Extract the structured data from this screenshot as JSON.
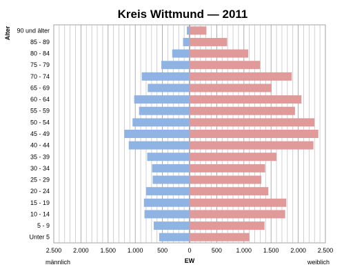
{
  "chart_data": {
    "type": "bar",
    "orientation": "horizontal",
    "title": "Kreis Wittmund — 2011",
    "ylabel": "Alter",
    "xlabel": "EW",
    "left_label": "männlich",
    "right_label": "weiblich",
    "categories": [
      "90 und älter",
      "85 - 89",
      "80 - 84",
      "75 - 79",
      "70 - 74",
      "65 - 69",
      "60 - 64",
      "55 - 59",
      "50 - 54",
      "45 - 49",
      "40 - 44",
      "35 - 39",
      "30 - 34",
      "25 - 29",
      "20 - 24",
      "15 - 19",
      "10 - 14",
      "5 - 9",
      "Unter 5"
    ],
    "series": [
      {
        "name": "männlich",
        "color": "#8fb4e3",
        "values": [
          50,
          120,
          320,
          520,
          880,
          770,
          1020,
          930,
          1050,
          1200,
          1120,
          780,
          690,
          680,
          800,
          840,
          830,
          660,
          560
        ]
      },
      {
        "name": "weiblich",
        "color": "#e09a9a",
        "values": [
          310,
          690,
          1080,
          1300,
          1880,
          1510,
          2060,
          1940,
          2300,
          2370,
          2280,
          1600,
          1390,
          1320,
          1450,
          1780,
          1760,
          1380,
          1100
        ]
      }
    ],
    "xlim": [
      -2500,
      2500
    ],
    "x_ticks": [
      "2.500",
      "2.000",
      "1.500",
      "1.000",
      "500",
      "0",
      "500",
      "1.000",
      "1.500",
      "2.000",
      "2.500"
    ],
    "grid": true
  }
}
